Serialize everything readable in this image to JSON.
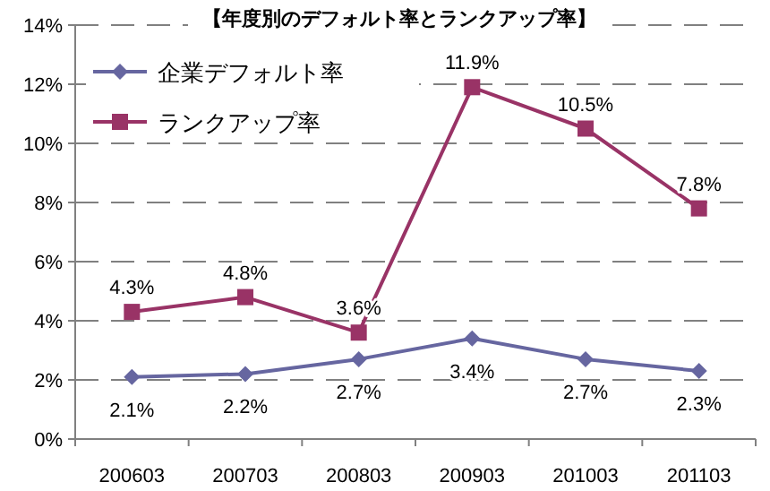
{
  "chart_data": {
    "type": "line",
    "title": "【年度別のデフォルト率とランクアップ率】",
    "categories": [
      "200603",
      "200703",
      "200803",
      "200903",
      "201003",
      "201103"
    ],
    "series": [
      {
        "name": "企業デフォルト率",
        "color": "#6666a0",
        "marker": "diamond",
        "values": [
          2.1,
          2.2,
          2.7,
          3.4,
          2.7,
          2.3
        ],
        "value_labels": [
          "2.1%",
          "2.2%",
          "2.7%",
          "3.4%",
          "2.7%",
          "2.3%"
        ]
      },
      {
        "name": "ランクアップ率",
        "color": "#993366",
        "marker": "square",
        "values": [
          4.3,
          4.8,
          3.6,
          11.9,
          10.5,
          7.8
        ],
        "value_labels": [
          "4.3%",
          "4.8%",
          "3.6%",
          "11.9%",
          "10.5%",
          "7.8%"
        ]
      }
    ],
    "ylim": [
      0,
      14
    ],
    "yticks": [
      {
        "value": 0,
        "label": "0%"
      },
      {
        "value": 2,
        "label": "2%"
      },
      {
        "value": 4,
        "label": "4%"
      },
      {
        "value": 6,
        "label": "6%"
      },
      {
        "value": 8,
        "label": "8%"
      },
      {
        "value": 10,
        "label": "10%"
      },
      {
        "value": 12,
        "label": "12%"
      },
      {
        "value": 14,
        "label": "14%"
      }
    ],
    "grid": "y",
    "legend": "top left",
    "line_style": "solid"
  }
}
